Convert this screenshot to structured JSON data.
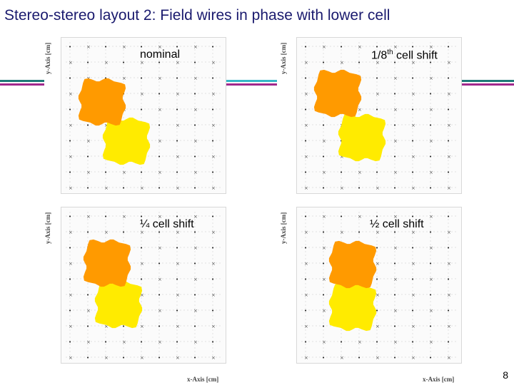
{
  "title": "Stereo-stereo layout 2: Field wires in phase with lower cell",
  "page_number": "8",
  "accent_colors": {
    "teal": "#1e7a78",
    "magenta": "#a0288c",
    "cyan": "#36b8c8",
    "lower_cell": "#ffeb00",
    "upper_cell": "#ff9a00"
  },
  "panels": [
    {
      "label": "nominal",
      "sup": "",
      "label_rest": "",
      "y_axis": "y-Axis [cm]",
      "x_axis": ""
    },
    {
      "label": "1/8",
      "sup": "th",
      "label_rest": " cell shift",
      "y_axis": "y-Axis [cm]",
      "x_axis": ""
    },
    {
      "label": "¼ cell shift",
      "sup": "",
      "label_rest": "",
      "y_axis": "y-Axis [cm]",
      "x_axis": "x-Axis [cm]"
    },
    {
      "label": "½ cell shift",
      "sup": "",
      "label_rest": "",
      "y_axis": "y-Axis [cm]",
      "x_axis": "x-Axis [cm]"
    }
  ]
}
